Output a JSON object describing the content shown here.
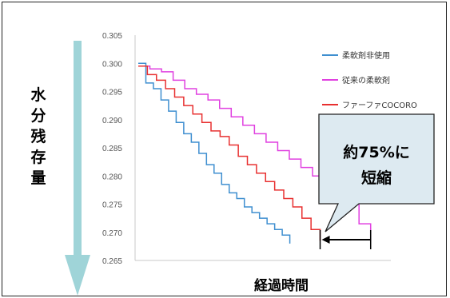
{
  "chart_data": {
    "type": "line",
    "ylabel": "水分残存量",
    "xlabel": "経過時間",
    "ylim": [
      0.265,
      0.305
    ],
    "yticks": [
      "0.305",
      "0.300",
      "0.295",
      "0.290",
      "0.285",
      "0.280",
      "0.275",
      "0.270",
      "0.265"
    ],
    "grid": false,
    "legend_position": "top-right",
    "x_relative": true,
    "series": [
      {
        "name": "柔軟剤非使用",
        "color": "#3f8fd0",
        "x": [
          0,
          0.05,
          0.1,
          0.15,
          0.2,
          0.25,
          0.3,
          0.35,
          0.4,
          0.45,
          0.5,
          0.55,
          0.6,
          0.65,
          0.7,
          0.75,
          0.8,
          0.85,
          0.9,
          0.95,
          1.0
        ],
        "values": [
          0.3,
          0.2965,
          0.2955,
          0.2935,
          0.2915,
          0.2895,
          0.2875,
          0.286,
          0.284,
          0.282,
          0.2805,
          0.2785,
          0.277,
          0.276,
          0.2745,
          0.2735,
          0.2725,
          0.2715,
          0.2705,
          0.2695,
          0.268
        ]
      },
      {
        "name": "従来の柔軟剤",
        "color": "#e040e0",
        "x": [
          0,
          0.05,
          0.1,
          0.15,
          0.2,
          0.25,
          0.3,
          0.35,
          0.4,
          0.45,
          0.5,
          0.55,
          0.6,
          0.65,
          0.7,
          0.75,
          0.8,
          0.85,
          0.9,
          0.95,
          1.0
        ],
        "values": [
          0.2995,
          0.299,
          0.2985,
          0.297,
          0.2955,
          0.2945,
          0.2935,
          0.292,
          0.2905,
          0.289,
          0.2875,
          0.286,
          0.2845,
          0.283,
          0.2815,
          0.28,
          0.2785,
          0.2765,
          0.275,
          0.2715,
          0.2685
        ]
      },
      {
        "name": "ファーファCOCORO",
        "color": "#e83030",
        "x": [
          0,
          0.05,
          0.1,
          0.15,
          0.2,
          0.25,
          0.3,
          0.35,
          0.4,
          0.45,
          0.5,
          0.55,
          0.6,
          0.65,
          0.7,
          0.75,
          0.8,
          0.85,
          0.9,
          0.95,
          1.0
        ],
        "values": [
          0.2995,
          0.298,
          0.297,
          0.2955,
          0.294,
          0.2925,
          0.291,
          0.2895,
          0.288,
          0.287,
          0.2855,
          0.2835,
          0.282,
          0.2805,
          0.279,
          0.2775,
          0.276,
          0.2745,
          0.2725,
          0.2705,
          0.2685
        ]
      }
    ],
    "annotation": {
      "text_line1": "約75%に",
      "text_line2": "短縮",
      "fill": "#ddeaf1"
    },
    "axis_arrow_color": "#9fd4d8"
  }
}
